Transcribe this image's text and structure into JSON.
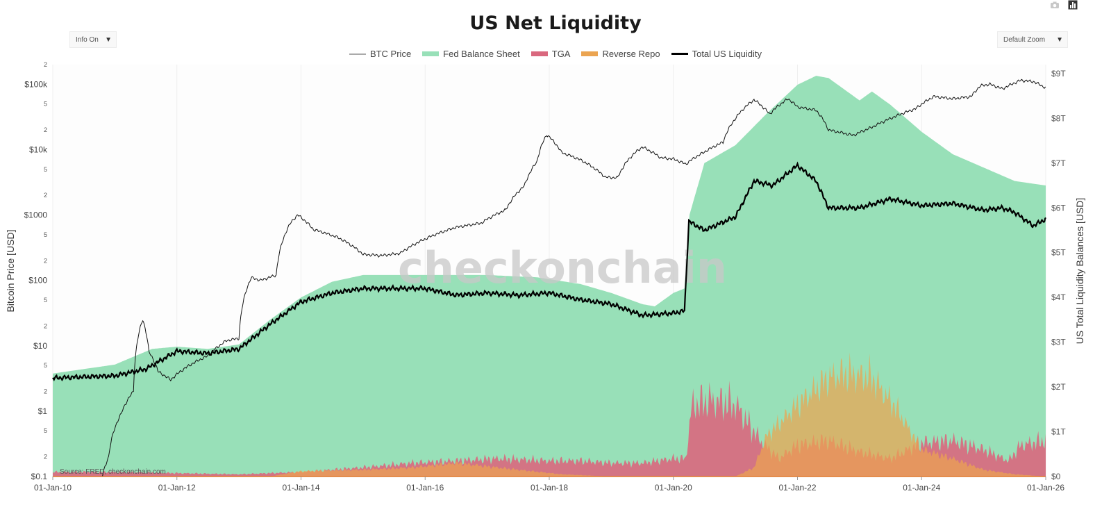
{
  "page": {
    "title": "US Net Liquidity",
    "info_dropdown": "Info On",
    "zoom_dropdown": "Default Zoom",
    "dropdown_arrow": "▼",
    "watermark": "checkonchain",
    "source": "Source: FRED, checkonchain.com"
  },
  "toolbar": {
    "icons": [
      "camera-icon",
      "bar-chart-icon"
    ]
  },
  "colors": {
    "btc": "#111111",
    "btc_legend": "#aaaaaa",
    "fed": "#98e0b8",
    "tga": "#d9687e",
    "rrp": "#eba451",
    "total": "#000000",
    "background": "#fdfdfd"
  },
  "chart_data": {
    "type": "area",
    "title": "US Net Liquidity",
    "legend": [
      "BTC Price",
      "Fed Balance Sheet",
      "TGA",
      "Reverse Repo",
      "Total US Liquidity"
    ],
    "legend_position": "top-center",
    "x_ticks": [
      "01-Jan-10",
      "01-Jan-12",
      "01-Jan-14",
      "01-Jan-16",
      "01-Jan-18",
      "01-Jan-20",
      "01-Jan-22",
      "01-Jan-24",
      "01-Jan-26"
    ],
    "x_range": [
      2010.0,
      2026.0
    ],
    "y_left": {
      "label": "Bitcoin Price [USD]",
      "scale": "log",
      "range": [
        0.1,
        200000
      ],
      "major_ticks": [
        {
          "value": 0.1,
          "label": "$0.1"
        },
        {
          "value": 1,
          "label": "$1"
        },
        {
          "value": 10,
          "label": "$10"
        },
        {
          "value": 100,
          "label": "$100"
        },
        {
          "value": 1000,
          "label": "$1000"
        },
        {
          "value": 10000,
          "label": "$10k"
        },
        {
          "value": 100000,
          "label": "$100k"
        }
      ],
      "minor_ticks": [
        {
          "value": 0.2,
          "label": "2"
        },
        {
          "value": 0.5,
          "label": "5"
        },
        {
          "value": 2,
          "label": "2"
        },
        {
          "value": 5,
          "label": "5"
        },
        {
          "value": 20,
          "label": "2"
        },
        {
          "value": 50,
          "label": "5"
        },
        {
          "value": 200,
          "label": "2"
        },
        {
          "value": 500,
          "label": "5"
        },
        {
          "value": 2000,
          "label": "2"
        },
        {
          "value": 5000,
          "label": "5"
        },
        {
          "value": 20000,
          "label": "2"
        },
        {
          "value": 50000,
          "label": "5"
        },
        {
          "value": 200000,
          "label": "2"
        }
      ]
    },
    "y_right": {
      "label": "US Total Liquidity Balances [USD]",
      "range": [
        0,
        9.2
      ],
      "ticks": [
        {
          "value": 0,
          "label": "$0"
        },
        {
          "value": 1,
          "label": "$1T"
        },
        {
          "value": 2,
          "label": "$2T"
        },
        {
          "value": 3,
          "label": "$3T"
        },
        {
          "value": 4,
          "label": "$4T"
        },
        {
          "value": 5,
          "label": "$5T"
        },
        {
          "value": 6,
          "label": "$6T"
        },
        {
          "value": 7,
          "label": "$7T"
        },
        {
          "value": 8,
          "label": "$8T"
        },
        {
          "value": 9,
          "label": "$9T"
        }
      ]
    },
    "series": [
      {
        "name": "BTC Price",
        "axis": "left",
        "kind": "line",
        "x": [
          2010.8,
          2010.9,
          2011.1,
          2011.3,
          2011.45,
          2011.55,
          2011.7,
          2011.9,
          2012.2,
          2012.5,
          2012.8,
          2013.0,
          2013.2,
          2013.35,
          2013.6,
          2013.85,
          2013.95,
          2014.2,
          2014.6,
          2015.0,
          2015.3,
          2015.6,
          2016.0,
          2016.5,
          2016.9,
          2017.3,
          2017.6,
          2017.8,
          2017.96,
          2018.2,
          2018.5,
          2018.9,
          2019.1,
          2019.3,
          2019.5,
          2019.8,
          2020.0,
          2020.2,
          2020.5,
          2020.8,
          2021.0,
          2021.3,
          2021.55,
          2021.85,
          2022.0,
          2022.3,
          2022.5,
          2022.9,
          2023.2,
          2023.5,
          2023.9,
          2024.2,
          2024.5,
          2024.8,
          2024.95,
          2025.1,
          2025.3,
          2025.6,
          2025.8,
          2026.0
        ],
        "values": [
          0.1,
          0.2,
          0.9,
          2,
          25,
          8,
          4,
          3,
          5,
          7,
          12,
          13,
          110,
          100,
          120,
          800,
          1000,
          600,
          450,
          250,
          240,
          260,
          430,
          650,
          750,
          1200,
          2800,
          6500,
          17000,
          9000,
          7000,
          3800,
          3700,
          7500,
          11000,
          7500,
          7200,
          6000,
          9200,
          13000,
          30000,
          58000,
          35000,
          60000,
          45000,
          40000,
          20000,
          16500,
          22000,
          30000,
          42000,
          65000,
          60000,
          65000,
          95000,
          100000,
          85000,
          115000,
          110000,
          88000
        ]
      },
      {
        "name": "Fed Balance Sheet",
        "axis": "right",
        "kind": "area",
        "x": [
          2010.0,
          2011.0,
          2011.6,
          2012.0,
          2012.5,
          2013.0,
          2013.5,
          2014.0,
          2014.5,
          2015.0,
          2016.0,
          2017.0,
          2017.8,
          2018.5,
          2019.0,
          2019.5,
          2019.7,
          2020.0,
          2020.18,
          2020.25,
          2020.5,
          2021.0,
          2021.5,
          2022.0,
          2022.3,
          2022.5,
          2023.0,
          2023.2,
          2023.5,
          2024.0,
          2024.5,
          2025.0,
          2025.5,
          2026.0
        ],
        "values": [
          2.3,
          2.5,
          2.85,
          2.9,
          2.85,
          2.95,
          3.5,
          4.0,
          4.35,
          4.5,
          4.5,
          4.5,
          4.45,
          4.3,
          4.1,
          3.85,
          3.8,
          4.1,
          4.2,
          5.8,
          7.0,
          7.4,
          8.1,
          8.75,
          8.95,
          8.9,
          8.4,
          8.6,
          8.3,
          7.7,
          7.2,
          6.9,
          6.6,
          6.5
        ]
      },
      {
        "name": "TGA",
        "axis": "right",
        "kind": "area",
        "x": [
          2010.0,
          2011.0,
          2013.0,
          2014.0,
          2015.0,
          2015.8,
          2016.5,
          2017.2,
          2018.0,
          2018.5,
          2019.0,
          2019.5,
          2020.0,
          2020.2,
          2020.3,
          2020.6,
          2021.0,
          2021.4,
          2021.7,
          2022.0,
          2022.5,
          2023.0,
          2023.5,
          2024.0,
          2024.5,
          2025.0,
          2025.4,
          2025.6,
          2026.0
        ],
        "values": [
          0.1,
          0.1,
          0.05,
          0.1,
          0.2,
          0.3,
          0.35,
          0.4,
          0.35,
          0.35,
          0.3,
          0.3,
          0.4,
          0.4,
          1.6,
          1.7,
          1.6,
          0.8,
          0.4,
          0.7,
          0.8,
          0.55,
          0.4,
          0.75,
          0.8,
          0.6,
          0.35,
          0.7,
          0.8
        ]
      },
      {
        "name": "Reverse Repo",
        "axis": "right",
        "kind": "area",
        "x": [
          2010.0,
          2013.5,
          2014.0,
          2015.0,
          2015.8,
          2016.5,
          2017.5,
          2018.2,
          2019.0,
          2020.0,
          2021.0,
          2021.3,
          2021.5,
          2022.0,
          2022.5,
          2022.8,
          2023.2,
          2023.6,
          2024.0,
          2024.5,
          2025.0,
          2025.5,
          2026.0
        ],
        "values": [
          0.0,
          0.0,
          0.12,
          0.15,
          0.2,
          0.3,
          0.15,
          0.05,
          0.0,
          0.0,
          0.0,
          0.2,
          0.9,
          1.6,
          2.2,
          2.3,
          2.2,
          1.5,
          0.6,
          0.4,
          0.15,
          0.05,
          0.0
        ]
      },
      {
        "name": "Total US Liquidity",
        "axis": "right",
        "kind": "line",
        "x": [
          2010.0,
          2011.0,
          2011.5,
          2012.0,
          2012.5,
          2013.0,
          2013.5,
          2014.0,
          2014.5,
          2015.0,
          2016.0,
          2016.5,
          2017.0,
          2017.5,
          2018.0,
          2018.5,
          2019.0,
          2019.5,
          2020.0,
          2020.18,
          2020.25,
          2020.5,
          2021.0,
          2021.3,
          2021.6,
          2022.0,
          2022.3,
          2022.5,
          2023.0,
          2023.5,
          2024.0,
          2024.5,
          2025.0,
          2025.3,
          2025.5,
          2025.8,
          2026.0
        ],
        "values": [
          2.2,
          2.25,
          2.4,
          2.8,
          2.75,
          2.85,
          3.4,
          3.9,
          4.1,
          4.2,
          4.2,
          4.05,
          4.1,
          4.05,
          4.1,
          3.95,
          3.85,
          3.6,
          3.65,
          3.7,
          5.7,
          5.5,
          5.8,
          6.6,
          6.5,
          6.95,
          6.6,
          6.0,
          6.0,
          6.2,
          6.05,
          6.1,
          5.95,
          6.0,
          5.9,
          5.6,
          5.75
        ]
      }
    ]
  }
}
